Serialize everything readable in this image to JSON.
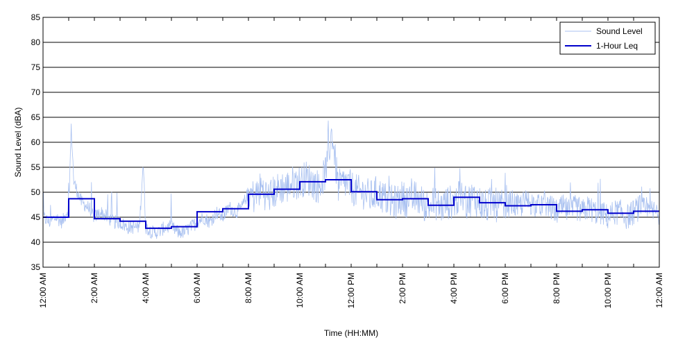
{
  "chart_data": {
    "type": "line",
    "title": "",
    "xlabel": "Time (HH:MM)",
    "ylabel": "Sound Level (dBA)",
    "xlim": [
      0,
      24
    ],
    "ylim": [
      35,
      85
    ],
    "yticks": [
      35,
      40,
      45,
      50,
      55,
      60,
      65,
      70,
      75,
      80,
      85
    ],
    "xtick_labels": [
      "12:00 AM",
      "2:00 AM",
      "4:00 AM",
      "6:00 AM",
      "8:00 AM",
      "10:00 AM",
      "12:00 PM",
      "2:00 PM",
      "4:00 PM",
      "6:00 PM",
      "8:00 PM",
      "10:00 PM",
      "12:00 AM"
    ],
    "grid": "horizontal",
    "legend_position": "top-right",
    "series": [
      {
        "name": "Sound Level",
        "color": "#a8c0f0",
        "note_render": "noisy-trace",
        "x": [
          0.0,
          0.25,
          0.5,
          0.75,
          1.0,
          1.1,
          1.2,
          1.35,
          1.5,
          1.75,
          2.0,
          2.25,
          2.5,
          2.75,
          3.0,
          3.25,
          3.5,
          3.75,
          3.9,
          4.0,
          4.25,
          4.5,
          4.75,
          5.0,
          5.25,
          5.5,
          5.75,
          6.0,
          6.25,
          6.5,
          6.75,
          7.0,
          7.25,
          7.5,
          7.75,
          8.0,
          8.25,
          8.5,
          8.75,
          9.0,
          9.25,
          9.5,
          9.75,
          10.0,
          10.25,
          10.5,
          10.75,
          11.0,
          11.25,
          11.5,
          11.75,
          12.0,
          12.25,
          12.5,
          12.75,
          13.0,
          13.25,
          13.5,
          13.75,
          14.0,
          14.25,
          14.5,
          14.75,
          15.0,
          15.25,
          15.5,
          15.75,
          16.0,
          16.25,
          16.5,
          16.75,
          17.0,
          17.25,
          17.5,
          17.75,
          18.0,
          18.25,
          18.5,
          18.75,
          19.0,
          19.25,
          19.5,
          19.75,
          20.0,
          20.25,
          20.5,
          20.75,
          21.0,
          21.25,
          21.5,
          21.75,
          22.0,
          22.25,
          22.5,
          22.75,
          23.0,
          23.25,
          23.5,
          23.75,
          24.0
        ],
        "y": [
          45,
          44,
          45,
          44,
          47,
          63,
          52,
          50,
          48,
          47,
          45,
          46,
          45,
          44,
          44,
          43,
          43,
          43,
          56,
          43,
          42,
          42,
          43,
          43,
          42,
          42,
          43,
          44,
          45,
          44,
          46,
          45,
          47,
          46,
          47,
          50,
          49,
          51,
          49,
          50,
          51,
          51,
          52,
          52,
          53,
          52,
          51,
          54,
          62,
          51,
          52,
          51,
          50,
          50,
          49,
          50,
          49,
          48,
          48,
          49,
          48,
          49,
          48,
          47,
          48,
          47,
          48,
          48,
          49,
          48,
          49,
          48,
          47,
          48,
          47,
          47,
          48,
          47,
          48,
          48,
          47,
          48,
          47,
          46,
          47,
          46,
          47,
          46,
          47,
          46,
          46,
          45,
          46,
          46,
          45,
          46,
          47,
          46,
          46,
          46
        ]
      },
      {
        "name": "1-Hour Leq",
        "color": "#0000cc",
        "step": true,
        "x": [
          0,
          1,
          2,
          3,
          4,
          5,
          6,
          7,
          8,
          9,
          10,
          11,
          12,
          13,
          14,
          15,
          16,
          17,
          18,
          19,
          20,
          21,
          22,
          23
        ],
        "y": [
          45.0,
          48.7,
          44.7,
          44.2,
          42.8,
          43.1,
          46.1,
          46.7,
          49.6,
          50.6,
          52.1,
          52.5,
          50.1,
          48.5,
          48.7,
          47.4,
          49.0,
          47.9,
          47.3,
          47.5,
          46.2,
          46.5,
          45.8,
          46.2
        ]
      }
    ]
  }
}
